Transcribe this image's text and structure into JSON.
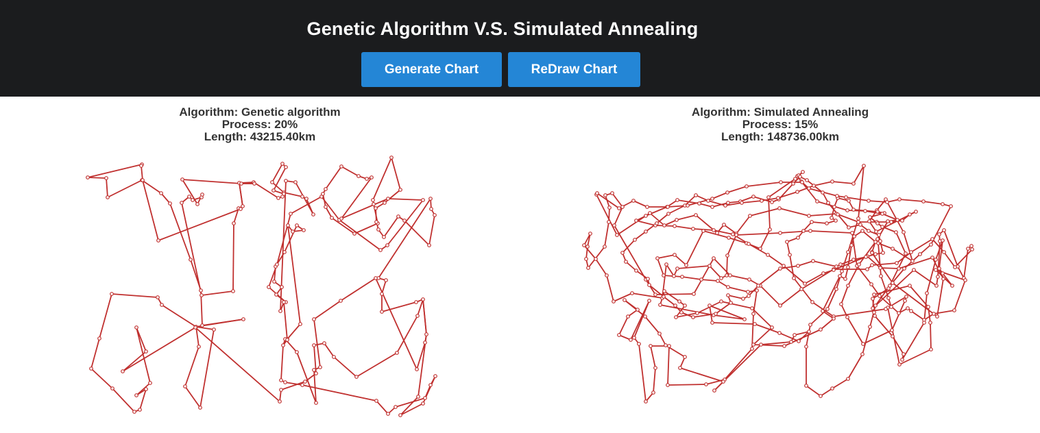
{
  "header": {
    "title": "Genetic Algorithm V.S. Simulated Annealing",
    "buttons": {
      "generate": "Generate Chart",
      "redraw": "ReDraw Chart"
    }
  },
  "colors": {
    "topbar_bg": "#1b1c1e",
    "button_bg": "#2486d6",
    "route_line": "#c0302f",
    "node_fill": "#ffffff"
  },
  "panels": {
    "ga": {
      "algorithm": "Algorithm: Genetic algorithm",
      "process": "Process: 20%",
      "length": "Length: 43215.40km"
    },
    "sa": {
      "algorithm": "Algorithm: Simulated Annealing",
      "process": "Process: 15%",
      "length": "Length: 148736.00km"
    }
  }
}
